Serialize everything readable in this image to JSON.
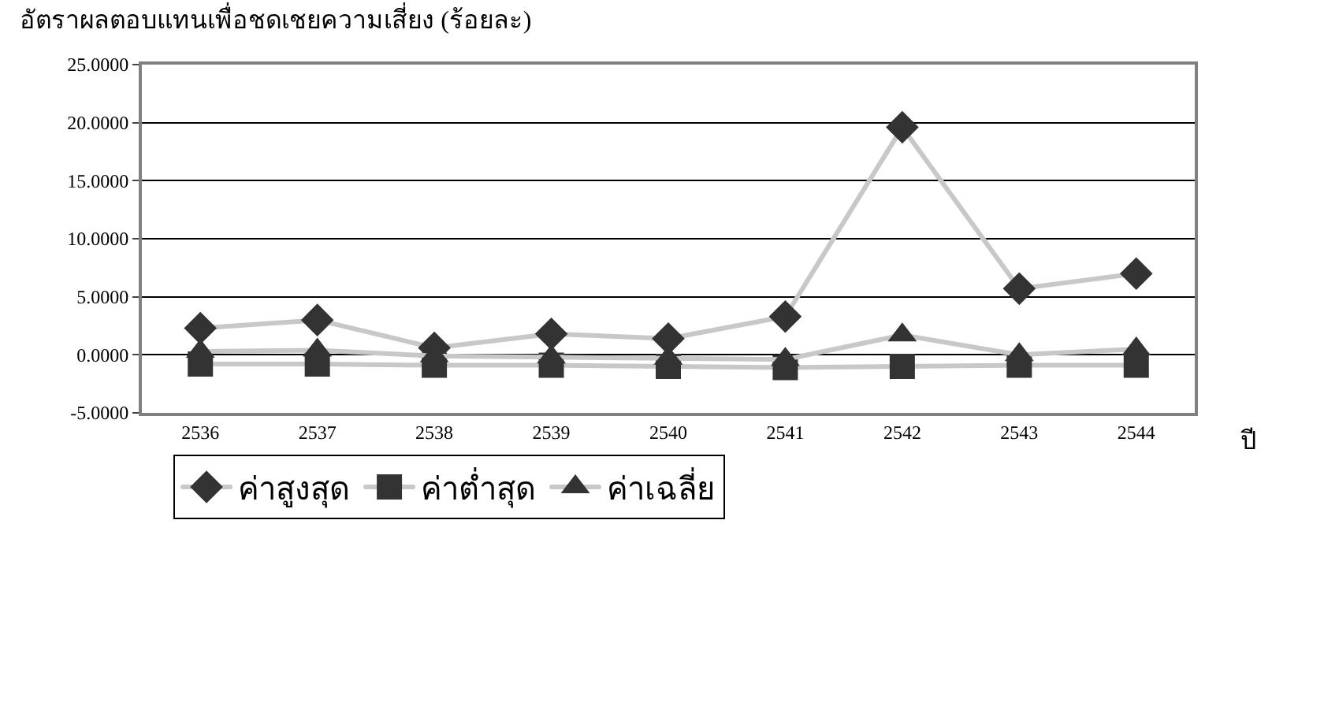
{
  "chart_data": {
    "type": "line",
    "title": "อัตราผลตอบแทนเพื่อชดเชยความเสี่ยง (ร้อยละ)",
    "xlabel": "ปี",
    "categories": [
      "2536",
      "2537",
      "2538",
      "2539",
      "2540",
      "2541",
      "2542",
      "2543",
      "2544"
    ],
    "series": [
      {
        "name": "ค่าสูงสุด",
        "color": "#333333",
        "marker": "diamond",
        "values": [
          2.3,
          3.0,
          0.6,
          1.8,
          1.4,
          3.3,
          19.6,
          5.7,
          7.0
        ]
      },
      {
        "name": "ค่าต่ำสุด",
        "color": "#333333",
        "marker": "square",
        "values": [
          -0.8,
          -0.8,
          -0.9,
          -0.9,
          -1.0,
          -1.1,
          -1.0,
          -0.9,
          -0.9
        ]
      },
      {
        "name": "ค่าเฉลี่ย",
        "color": "#333333",
        "marker": "triangle",
        "values": [
          0.3,
          0.4,
          -0.1,
          -0.2,
          -0.3,
          -0.4,
          1.7,
          0.0,
          0.5
        ]
      }
    ],
    "ylim": [
      -5,
      25
    ],
    "yticks": [
      {
        "value": -5,
        "label": "-5.0000"
      },
      {
        "value": 0,
        "label": "0.0000"
      },
      {
        "value": 5,
        "label": "5.0000"
      },
      {
        "value": 10,
        "label": "10.0000"
      },
      {
        "value": 15,
        "label": "15.0000"
      },
      {
        "value": 20,
        "label": "20.0000"
      },
      {
        "value": 25,
        "label": "25.0000"
      }
    ],
    "grid": "y",
    "legend": "bottom",
    "line_style": "solid"
  }
}
